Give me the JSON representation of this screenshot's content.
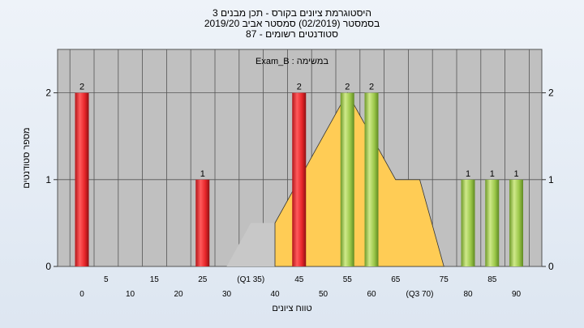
{
  "title_lines": [
    "היסטוגרמת ציונים בקורס - תכן מבנים 3",
    "בסמסטר  (02/2019)  סמסטר אביב 2019/20",
    "סטודנטים רשומים - 87"
  ],
  "chart_data": {
    "type": "bar",
    "xlabel": "טווח ציונים",
    "ylabel": "מספר סטודנטים",
    "subtitle": "במשימה : Exam_B",
    "ylim": [
      0,
      2.5
    ],
    "y_ticks": [
      0,
      1,
      2
    ],
    "x_tick_labels_lower": [
      "0",
      "10",
      "20",
      "30",
      "40",
      "50",
      "60",
      "(Q3 70)",
      "80",
      "90"
    ],
    "x_tick_labels_upper": [
      "5",
      "15",
      "25",
      "(Q1 35)",
      "45",
      "55",
      "65",
      "75",
      "85"
    ],
    "bars": [
      {
        "x": 0,
        "value": 2,
        "label": "2",
        "color": "red"
      },
      {
        "x": 25,
        "value": 1,
        "label": "1",
        "color": "red"
      },
      {
        "x": 45,
        "value": 2,
        "label": "2",
        "color": "red"
      },
      {
        "x": 55,
        "value": 2,
        "label": "2",
        "color": "green"
      },
      {
        "x": 60,
        "value": 2,
        "label": "2",
        "color": "green"
      },
      {
        "x": 80,
        "value": 1,
        "label": "1",
        "color": "green"
      },
      {
        "x": 85,
        "value": 1,
        "label": "1",
        "color": "green"
      },
      {
        "x": 90,
        "value": 1,
        "label": "1",
        "color": "green"
      }
    ],
    "area_series": [
      {
        "name": "",
        "color": "#c8c8c8",
        "points": [
          [
            30,
            0
          ],
          [
            35,
            0.5
          ],
          [
            40,
            0.5
          ],
          [
            40,
            0
          ]
        ]
      },
      {
        "name": "",
        "color": "#ffcc55",
        "points": [
          [
            40,
            0
          ],
          [
            40,
            0.5
          ],
          [
            55,
            2
          ],
          [
            65,
            1
          ],
          [
            70,
            1
          ],
          [
            75,
            0
          ]
        ]
      }
    ],
    "grid": true,
    "colors": {
      "plot_bg": "#c0c0c0",
      "red_bar": "#e8262a",
      "green_bar": "#9cc84a",
      "area_gray": "#c8c8c8",
      "area_orange": "#ffcc55"
    }
  }
}
